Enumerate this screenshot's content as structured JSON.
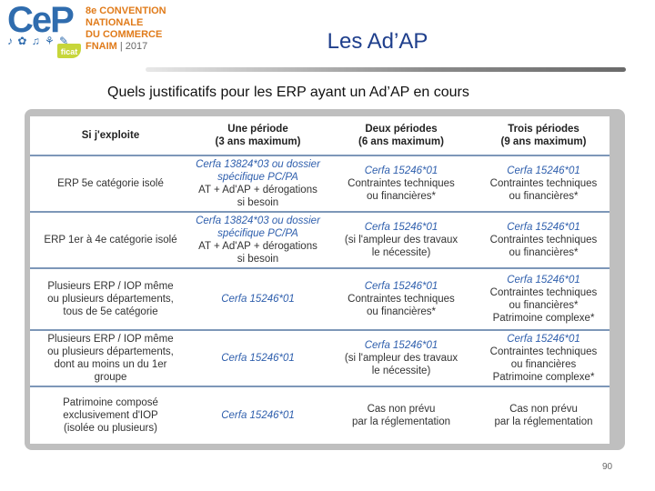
{
  "logo": {
    "brand": "CeP",
    "doodles": "♪ ✿ ♫ ⚘ ✎",
    "badge": "ficat",
    "line1": "8e CONVENTION",
    "line2": "NATIONALE",
    "line3": "DU COMMERCE",
    "line4": "FNAIM",
    "year": "| 2017"
  },
  "title": "Les Ad’AP",
  "subtitle": "Quels justificatifs pour les ERP ayant un Ad’AP en cours",
  "table": {
    "headers": [
      [
        "Si j'exploite"
      ],
      [
        "Une période",
        "(3 ans maximum)"
      ],
      [
        "Deux périodes",
        "(6 ans maximum)"
      ],
      [
        "Trois périodes",
        "(9 ans maximum)"
      ]
    ],
    "rows": [
      [
        {
          "lines": [
            "ERP 5e catégorie isolé"
          ]
        },
        {
          "blue": [
            "Cerfa 13824*03 ou dossier",
            "spécifique PC/PA"
          ],
          "lines": [
            "AT + Ad'AP + dérogations",
            "si besoin"
          ]
        },
        {
          "blue": [
            "Cerfa 15246*01"
          ],
          "lines": [
            "Contraintes techniques",
            "ou financières*"
          ]
        },
        {
          "blue": [
            "Cerfa 15246*01"
          ],
          "lines": [
            "Contraintes techniques",
            "ou financières*"
          ]
        }
      ],
      [
        {
          "lines": [
            "ERP 1er à 4e catégorie isolé"
          ]
        },
        {
          "blue": [
            "Cerfa 13824*03 ou dossier",
            "spécifique PC/PA"
          ],
          "lines": [
            "AT + Ad'AP + dérogations",
            "si besoin"
          ]
        },
        {
          "blue": [
            "Cerfa 15246*01"
          ],
          "lines": [
            "(si l'ampleur des travaux",
            "le nécessite)"
          ]
        },
        {
          "blue": [
            "Cerfa 15246*01"
          ],
          "lines": [
            "Contraintes techniques",
            "ou financières*"
          ]
        }
      ],
      [
        {
          "lines": [
            "Plusieurs ERP / IOP même",
            "ou plusieurs départements,",
            "tous de 5e catégorie"
          ]
        },
        {
          "blue": [
            "Cerfa 15246*01"
          ],
          "lines": []
        },
        {
          "blue": [
            "Cerfa 15246*01"
          ],
          "lines": [
            "Contraintes techniques",
            "ou financières*"
          ]
        },
        {
          "blue": [
            "Cerfa 15246*01"
          ],
          "lines": [
            "Contraintes techniques",
            "ou financières*",
            "Patrimoine complexe*"
          ]
        }
      ],
      [
        {
          "lines": [
            "Plusieurs ERP / IOP même",
            "ou plusieurs départements,",
            "dont au moins un du 1er",
            "groupe"
          ]
        },
        {
          "blue": [
            "Cerfa 15246*01"
          ],
          "lines": []
        },
        {
          "blue": [
            "Cerfa 15246*01"
          ],
          "lines": [
            "(si l'ampleur des travaux",
            "le nécessite)"
          ]
        },
        {
          "blue": [
            "Cerfa 15246*01"
          ],
          "lines": [
            "Contraintes techniques",
            "ou financières",
            "Patrimoine complexe*"
          ]
        }
      ],
      [
        {
          "lines": [
            "Patrimoine composé",
            "exclusivement d'IOP",
            "(isolée ou plusieurs)"
          ]
        },
        {
          "blue": [
            "Cerfa 15246*01"
          ],
          "lines": []
        },
        {
          "blue": [],
          "lines": [
            "Cas non prévu",
            "par la réglementation"
          ]
        },
        {
          "blue": [],
          "lines": [
            "Cas non prévu",
            "par  la réglementation"
          ]
        }
      ]
    ]
  },
  "page_number": "90"
}
